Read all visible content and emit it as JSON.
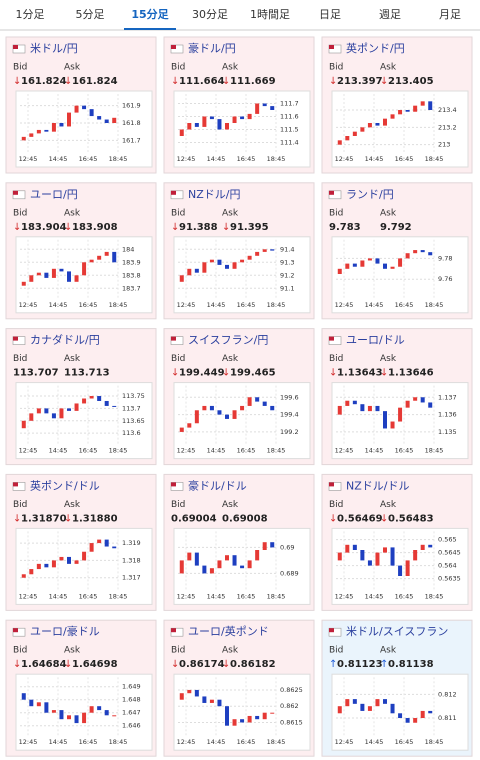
{
  "tabs": [
    "1分足",
    "5分足",
    "15分足",
    "30分足",
    "1時間足",
    "日足",
    "週足",
    "月足"
  ],
  "active_tab": 2,
  "bid_label": "Bid",
  "ask_label": "Ask",
  "time_labels": [
    "12:45",
    "14:45",
    "16:45",
    "18:45"
  ],
  "panels": [
    {
      "name": "米ドル/円",
      "bid_arrow": "↓",
      "bid": "161.824",
      "ask_arrow": "↓",
      "ask": "161.824",
      "ylim": [
        161.65,
        161.95
      ],
      "yticks": [
        161.9,
        161.8,
        161.7
      ],
      "closes": [
        161.7,
        161.72,
        161.74,
        161.76,
        161.75,
        161.8,
        161.78,
        161.86,
        161.9,
        161.88,
        161.84,
        161.82,
        161.8,
        161.83
      ]
    },
    {
      "name": "豪ドル/円",
      "bid_arrow": "↓",
      "bid": "111.664",
      "ask_arrow": "↓",
      "ask": "111.669",
      "ylim": [
        111.35,
        111.75
      ],
      "yticks": [
        111.7,
        111.6,
        111.5,
        111.4
      ],
      "closes": [
        111.45,
        111.5,
        111.55,
        111.52,
        111.6,
        111.58,
        111.5,
        111.55,
        111.6,
        111.58,
        111.62,
        111.7,
        111.68,
        111.65
      ]
    },
    {
      "name": "英ポンド/円",
      "bid_arrow": "↓",
      "bid": "213.397",
      "ask_arrow": "↓",
      "ask": "213.405",
      "ylim": [
        212.95,
        213.55
      ],
      "yticks": [
        213.4,
        213.2,
        213
      ],
      "closes": [
        213.0,
        213.05,
        213.1,
        213.15,
        213.2,
        213.25,
        213.22,
        213.3,
        213.35,
        213.4,
        213.38,
        213.45,
        213.5,
        213.4
      ]
    },
    {
      "name": "ユーロ/円",
      "bid_arrow": "↓",
      "bid": "183.904",
      "ask_arrow": "↓",
      "ask": "183.908",
      "ylim": [
        183.65,
        184.05
      ],
      "yticks": [
        184,
        183.9,
        183.8,
        183.7
      ],
      "closes": [
        183.72,
        183.75,
        183.8,
        183.82,
        183.78,
        183.85,
        183.83,
        183.75,
        183.8,
        183.9,
        183.92,
        183.95,
        183.98,
        183.9
      ]
    },
    {
      "name": "NZドル/円",
      "bid_arrow": "↓",
      "bid": "91.388",
      "ask_arrow": "↓",
      "ask": "91.395",
      "ylim": [
        91.05,
        91.45
      ],
      "yticks": [
        91.4,
        91.3,
        91.2,
        91.1
      ],
      "closes": [
        91.15,
        91.2,
        91.25,
        91.22,
        91.3,
        91.32,
        91.28,
        91.25,
        91.3,
        91.32,
        91.35,
        91.38,
        91.4,
        91.39
      ]
    },
    {
      "name": "ランド/円",
      "bid": "9.783",
      "ask": "9.792",
      "ylim": [
        9.745,
        9.795
      ],
      "yticks": [
        9.78,
        9.76
      ],
      "closes": [
        9.765,
        9.77,
        9.775,
        9.772,
        9.778,
        9.78,
        9.775,
        9.77,
        9.772,
        9.78,
        9.785,
        9.788,
        9.786,
        9.783
      ]
    },
    {
      "name": "カナダドル/円",
      "bid": "113.707",
      "ask": "113.713",
      "ylim": [
        113.57,
        113.78
      ],
      "yticks": [
        113.75,
        113.7,
        113.65,
        113.6
      ],
      "closes": [
        113.62,
        113.65,
        113.68,
        113.7,
        113.68,
        113.66,
        113.7,
        113.69,
        113.72,
        113.74,
        113.75,
        113.73,
        113.71,
        113.707
      ]
    },
    {
      "name": "スイスフラン/円",
      "bid_arrow": "↓",
      "bid": "199.449",
      "ask_arrow": "↓",
      "ask": "199.465",
      "ylim": [
        199.1,
        199.7
      ],
      "yticks": [
        199.6,
        199.4,
        199.2
      ],
      "closes": [
        199.2,
        199.25,
        199.3,
        199.45,
        199.5,
        199.45,
        199.4,
        199.35,
        199.45,
        199.5,
        199.6,
        199.55,
        199.5,
        199.45
      ]
    },
    {
      "name": "ユーロ/ドル",
      "bid_arrow": "↓",
      "bid": "1.13643",
      "ask_arrow": "↓",
      "ask": "1.13646",
      "ylim": [
        1.1345,
        1.1375
      ],
      "yticks": [
        1.137,
        1.136,
        1.135
      ],
      "closes": [
        1.136,
        1.1365,
        1.1368,
        1.1366,
        1.1362,
        1.1365,
        1.1362,
        1.1352,
        1.1356,
        1.1364,
        1.1368,
        1.137,
        1.1367,
        1.1364
      ]
    },
    {
      "name": "英ポンド/ドル",
      "bid_arrow": "↓",
      "bid": "1.31870",
      "ask_arrow": "↓",
      "ask": "1.31880",
      "ylim": [
        1.3165,
        1.3195
      ],
      "yticks": [
        1.319,
        1.318,
        1.317
      ],
      "closes": [
        1.317,
        1.3172,
        1.3175,
        1.3178,
        1.3176,
        1.318,
        1.3182,
        1.3178,
        1.318,
        1.3185,
        1.319,
        1.3192,
        1.3188,
        1.3187
      ]
    },
    {
      "name": "豪ドル/ドル",
      "bid": "0.69004",
      "ask": "0.69008",
      "ylim": [
        0.6885,
        0.6905
      ],
      "yticks": [
        0.69,
        0.689
      ],
      "closes": [
        0.689,
        0.6895,
        0.6898,
        0.6893,
        0.689,
        0.6892,
        0.6895,
        0.6897,
        0.6893,
        0.6892,
        0.6895,
        0.6899,
        0.6902,
        0.69
      ]
    },
    {
      "name": "NZドル/ドル",
      "bid_arrow": "↓",
      "bid": "0.56469",
      "ask_arrow": "↓",
      "ask": "0.56483",
      "ylim": [
        0.5632,
        0.5652
      ],
      "yticks": [
        0.565,
        0.5645,
        0.564,
        0.5635
      ],
      "closes": [
        0.5642,
        0.5645,
        0.5648,
        0.5646,
        0.5642,
        0.564,
        0.5645,
        0.5647,
        0.564,
        0.5636,
        0.5642,
        0.5646,
        0.5648,
        0.5647
      ]
    },
    {
      "name": "ユーロ/豪ドル",
      "bid_arrow": "↓",
      "bid": "1.64684",
      "ask_arrow": "↓",
      "ask": "1.64698",
      "ylim": [
        1.6455,
        1.6495
      ],
      "yticks": [
        1.649,
        1.648,
        1.647,
        1.646
      ],
      "closes": [
        1.6485,
        1.648,
        1.6475,
        1.6478,
        1.647,
        1.6472,
        1.6465,
        1.6468,
        1.6462,
        1.647,
        1.6475,
        1.6472,
        1.6468,
        1.6468
      ]
    },
    {
      "name": "ユーロ/英ポンド",
      "bid_arrow": "↓",
      "bid": "0.86174",
      "ask_arrow": "↓",
      "ask": "0.86182",
      "ylim": [
        0.8612,
        0.8628
      ],
      "yticks": [
        0.8625,
        0.862,
        0.8615
      ],
      "closes": [
        0.8622,
        0.8624,
        0.8625,
        0.8623,
        0.8621,
        0.8622,
        0.862,
        0.8614,
        0.8616,
        0.8615,
        0.8617,
        0.8616,
        0.8618,
        0.8618
      ]
    },
    {
      "name": "米ドル/スイスフラン",
      "bid_arrow": "↑",
      "bid": "0.81123",
      "ask_arrow": "↑",
      "ask": "0.81138",
      "ylim": [
        0.8104,
        0.8126
      ],
      "yticks": [
        0.812,
        0.811
      ],
      "closes": [
        0.8112,
        0.8115,
        0.8118,
        0.8116,
        0.8113,
        0.8115,
        0.8118,
        0.8116,
        0.8112,
        0.811,
        0.8108,
        0.811,
        0.8113,
        0.8112
      ],
      "background": "#eaf4fc"
    }
  ]
}
